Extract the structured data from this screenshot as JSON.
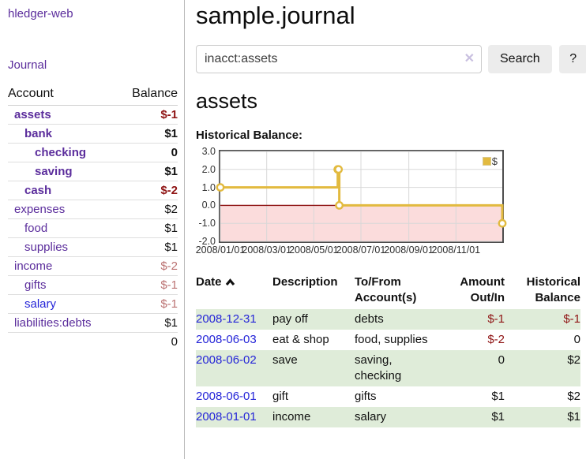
{
  "app": {
    "brand": "hledger-web",
    "nav_journal": "Journal"
  },
  "header": {
    "title": "sample.journal"
  },
  "search": {
    "value": "inacct:assets",
    "clear_icon": "✕",
    "button_label": "Search",
    "help_label": "?"
  },
  "sidebar": {
    "columns": {
      "account": "Account",
      "balance": "Balance"
    },
    "accounts": [
      {
        "name": "assets",
        "balance": "$-1",
        "depth": 1,
        "bold": true,
        "balance_style": "neg",
        "link_style": "purple"
      },
      {
        "name": "bank",
        "balance": "$1",
        "depth": 2,
        "bold": true,
        "balance_style": "plain",
        "link_style": "purple"
      },
      {
        "name": "checking",
        "balance": "0",
        "depth": 3,
        "bold": true,
        "balance_style": "plain",
        "link_style": "purple"
      },
      {
        "name": "saving",
        "balance": "$1",
        "depth": 3,
        "bold": true,
        "balance_style": "plain",
        "link_style": "purple"
      },
      {
        "name": "cash",
        "balance": "$-2",
        "depth": 2,
        "bold": true,
        "balance_style": "neg",
        "link_style": "purple"
      },
      {
        "name": "expenses",
        "balance": "$2",
        "depth": 1,
        "bold": false,
        "balance_style": "plain",
        "link_style": "purple"
      },
      {
        "name": "food",
        "balance": "$1",
        "depth": 2,
        "bold": false,
        "balance_style": "plain",
        "link_style": "purple"
      },
      {
        "name": "supplies",
        "balance": "$1",
        "depth": 2,
        "bold": false,
        "balance_style": "plain",
        "link_style": "purple"
      },
      {
        "name": "income",
        "balance": "$-2",
        "depth": 1,
        "bold": false,
        "balance_style": "muted",
        "link_style": "purple"
      },
      {
        "name": "gifts",
        "balance": "$-1",
        "depth": 2,
        "bold": false,
        "balance_style": "muted",
        "link_style": "purple"
      },
      {
        "name": "salary",
        "balance": "$-1",
        "depth": 2,
        "bold": false,
        "balance_style": "muted",
        "link_style": "blue"
      },
      {
        "name": "liabilities:debts",
        "balance": "$1",
        "depth": 1,
        "bold": false,
        "balance_style": "plain",
        "link_style": "purple"
      }
    ],
    "total": "0"
  },
  "account_page": {
    "heading": "assets",
    "chart_title": "Historical Balance:"
  },
  "chart_data": {
    "type": "line",
    "step": true,
    "title": "Historical Balance",
    "series": [
      {
        "name": "$",
        "color": "#e2ba3f",
        "points": [
          [
            "2008-01-01",
            1
          ],
          [
            "2008-06-01",
            2
          ],
          [
            "2008-06-02",
            2
          ],
          [
            "2008-06-03",
            0
          ],
          [
            "2008-12-31",
            -1
          ]
        ]
      }
    ],
    "x_range": [
      "2008-01-01",
      "2008-12-31"
    ],
    "ylim": [
      -2,
      3
    ],
    "y_ticks": [
      {
        "value": 3,
        "label": "3.0"
      },
      {
        "value": 2,
        "label": "2.0"
      },
      {
        "value": 1,
        "label": "1.0"
      },
      {
        "value": 0,
        "label": "0.0"
      },
      {
        "value": -1,
        "label": "-1.0"
      },
      {
        "value": -2,
        "label": "-2.0"
      }
    ],
    "x_ticks": [
      {
        "date": "2008-01-01",
        "label": "2008/01/01"
      },
      {
        "date": "2008-03-01",
        "label": "2008/03/01"
      },
      {
        "date": "2008-05-01",
        "label": "2008/05/01"
      },
      {
        "date": "2008-07-01",
        "label": "2008/07/01"
      },
      {
        "date": "2008-09-01",
        "label": "2008/09/01"
      },
      {
        "date": "2008-11-01",
        "label": "2008/11/01"
      }
    ],
    "legend": {
      "label": "$",
      "position": "top-right"
    },
    "grid": true,
    "negative_region_color": "#fbdcdc",
    "zero_line_color": "#8c1010",
    "grid_color": "#d8d8d8",
    "marker": {
      "fill": "#ffffff",
      "stroke": "#e2ba3f",
      "radius": 4.2
    }
  },
  "register": {
    "columns": {
      "date": "Date",
      "description": "Description",
      "accounts": "To/From Account(s)",
      "amount": "Amount Out/In",
      "balance": "Historical Balance"
    },
    "sort": {
      "column": "date",
      "direction": "asc",
      "icon": "chevron-up"
    },
    "rows": [
      {
        "date": "2008-12-31",
        "description": "pay off",
        "accounts": "debts",
        "amount": "$-1",
        "balance": "$-1",
        "amount_neg": true,
        "balance_neg": true
      },
      {
        "date": "2008-06-03",
        "description": "eat & shop",
        "accounts": "food, supplies",
        "amount": "$-2",
        "balance": "0",
        "amount_neg": true,
        "balance_neg": false
      },
      {
        "date": "2008-06-02",
        "description": "save",
        "accounts": "saving, checking",
        "amount": "0",
        "balance": "$2",
        "amount_neg": false,
        "balance_neg": false
      },
      {
        "date": "2008-06-01",
        "description": "gift",
        "accounts": "gifts",
        "amount": "$1",
        "balance": "$2",
        "amount_neg": false,
        "balance_neg": false
      },
      {
        "date": "2008-01-01",
        "description": "income",
        "accounts": "salary",
        "amount": "$1",
        "balance": "$1",
        "amount_neg": false,
        "balance_neg": false
      }
    ]
  },
  "colors": {
    "link_purple": "#5b2d9c",
    "link_blue": "#2525d8",
    "negative_strong": "#8f1414",
    "negative_muted": "#bb7272",
    "row_stripe_green": "#dfecd9",
    "series_gold": "#e2ba3f"
  }
}
